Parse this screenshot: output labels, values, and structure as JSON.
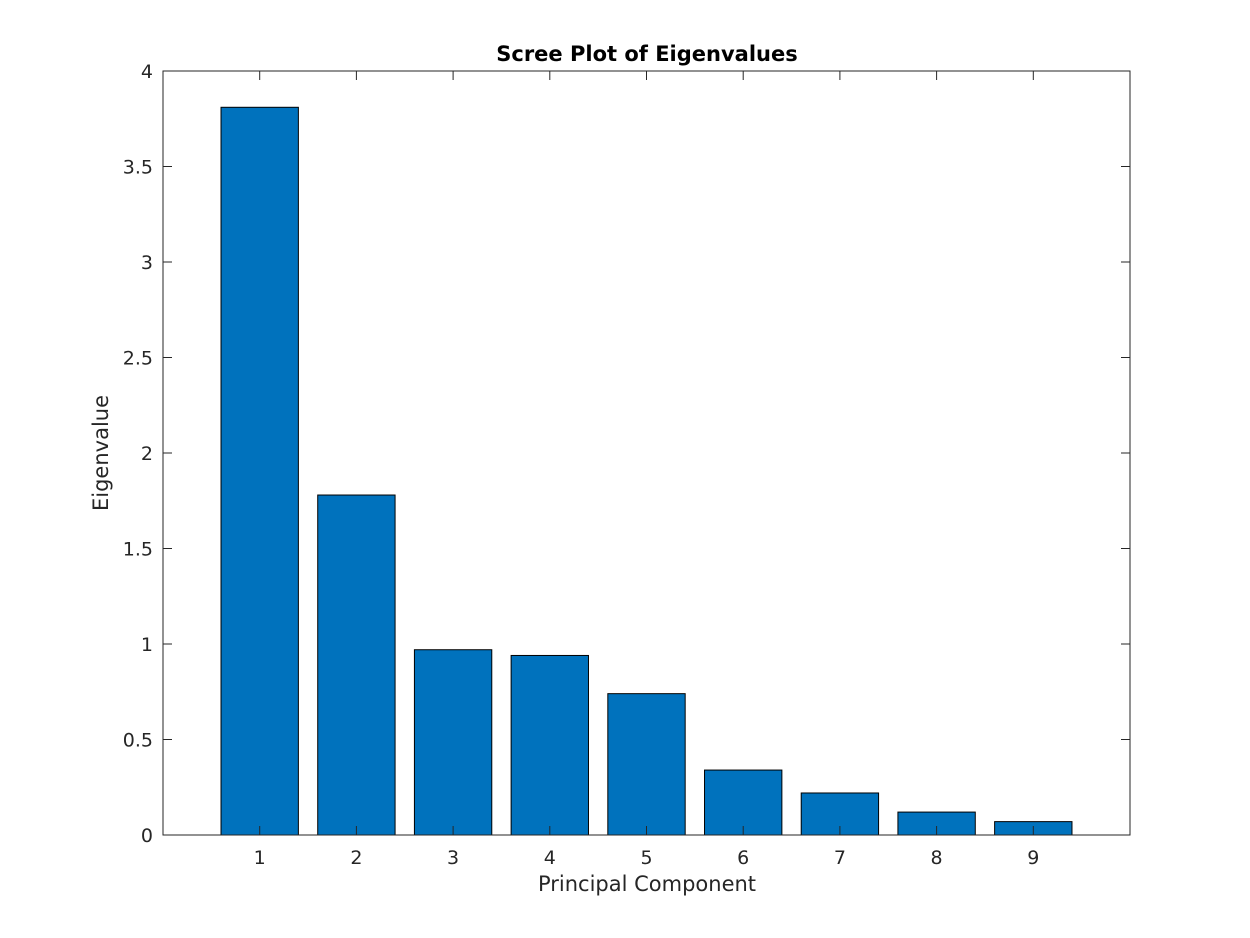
{
  "chart_data": {
    "type": "bar",
    "title": "Scree Plot of Eigenvalues",
    "xlabel": "Principal Component",
    "ylabel": "Eigenvalue",
    "categories": [
      "1",
      "2",
      "3",
      "4",
      "5",
      "6",
      "7",
      "8",
      "9"
    ],
    "values": [
      3.81,
      1.78,
      0.97,
      0.94,
      0.74,
      0.34,
      0.22,
      0.12,
      0.07
    ],
    "xlim": [
      0,
      10
    ],
    "ylim": [
      0,
      4
    ],
    "yticks": [
      0,
      0.5,
      1,
      1.5,
      2,
      2.5,
      3,
      3.5,
      4
    ],
    "ytick_labels": [
      "0",
      "0.5",
      "1",
      "1.5",
      "2",
      "2.5",
      "3",
      "3.5",
      "4"
    ],
    "grid": false,
    "legend": "none",
    "colors": {
      "bar": "#0072BD",
      "edge": "#000000",
      "axis": "#262626"
    }
  }
}
